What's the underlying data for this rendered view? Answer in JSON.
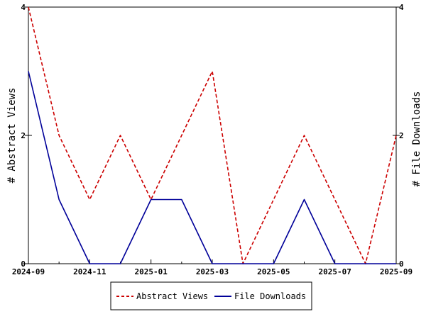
{
  "chart_data": {
    "type": "line",
    "title": "",
    "xlabel": "",
    "ylabel_left": "# Abstract Views",
    "ylabel_right": "# File Downloads",
    "ylim_left": [
      0,
      4
    ],
    "ylim_right": [
      0,
      4
    ],
    "y_ticks_left": [
      0,
      2,
      4
    ],
    "y_ticks_right": [
      0,
      2,
      4
    ],
    "x": [
      "2024-09",
      "2024-10",
      "2024-11",
      "2024-12",
      "2025-01",
      "2025-02",
      "2025-03",
      "2025-04",
      "2025-05",
      "2025-06",
      "2025-07",
      "2025-08",
      "2025-09"
    ],
    "x_tick_labels": [
      "2024-09",
      "2024-11",
      "2025-01",
      "2025-03",
      "2025-05",
      "2025-07",
      "2025-09"
    ],
    "series": [
      {
        "name": "Abstract Views",
        "axis": "left",
        "color": "#cc0000",
        "style": "dashed",
        "values": [
          4,
          2,
          1,
          2,
          1,
          2,
          3,
          0,
          1,
          2,
          1,
          0,
          2
        ]
      },
      {
        "name": "File Downloads",
        "axis": "right",
        "color": "#000099",
        "style": "solid",
        "values": [
          3,
          1,
          0,
          0,
          1,
          1,
          0,
          0,
          0,
          1,
          0,
          0,
          0
        ]
      }
    ],
    "grid": false,
    "legend_position": "bottom-center"
  }
}
